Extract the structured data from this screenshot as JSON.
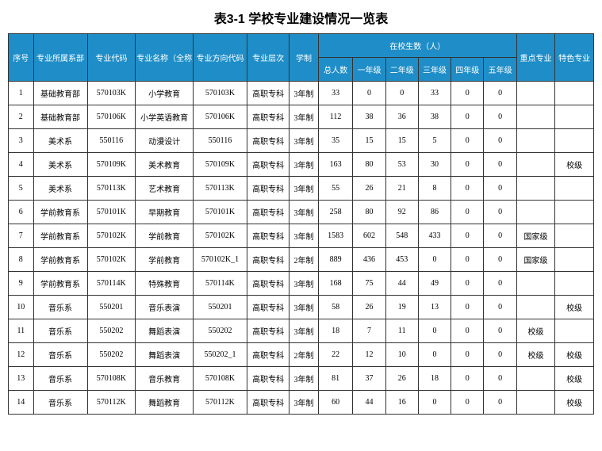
{
  "title": "表3-1 学校专业建设情况一览表",
  "colors": {
    "header_bg": "#1f8ec8",
    "header_fg": "#ffffff",
    "border": "#333333",
    "bg": "#ffffff"
  },
  "headers": {
    "idx": "序号",
    "dept": "专业所属系部",
    "code": "专业代码",
    "name": "专业名称（全称）",
    "dir": "专业方向代码",
    "level": "专业层次",
    "system": "学制",
    "enroll_group": "在校生数（人）",
    "total": "总人数",
    "g1": "一年级",
    "g2": "二年级",
    "g3": "三年级",
    "g4": "四年级",
    "g5": "五年级",
    "key": "重点专业",
    "feature": "特色专业"
  },
  "rows": [
    {
      "idx": "1",
      "dept": "基础教育部",
      "code": "570103K",
      "name": "小学教育",
      "dir": "570103K",
      "level": "高职专科",
      "sys": "3年制",
      "tot": "33",
      "g1": "0",
      "g2": "0",
      "g3": "33",
      "g4": "0",
      "g5": "0",
      "key": "",
      "feat": ""
    },
    {
      "idx": "2",
      "dept": "基础教育部",
      "code": "570106K",
      "name": "小学英语教育",
      "dir": "570106K",
      "level": "高职专科",
      "sys": "3年制",
      "tot": "112",
      "g1": "38",
      "g2": "36",
      "g3": "38",
      "g4": "0",
      "g5": "0",
      "key": "",
      "feat": ""
    },
    {
      "idx": "3",
      "dept": "美术系",
      "code": "550116",
      "name": "动漫设计",
      "dir": "550116",
      "level": "高职专科",
      "sys": "3年制",
      "tot": "35",
      "g1": "15",
      "g2": "15",
      "g3": "5",
      "g4": "0",
      "g5": "0",
      "key": "",
      "feat": ""
    },
    {
      "idx": "4",
      "dept": "美术系",
      "code": "570109K",
      "name": "美术教育",
      "dir": "570109K",
      "level": "高职专科",
      "sys": "3年制",
      "tot": "163",
      "g1": "80",
      "g2": "53",
      "g3": "30",
      "g4": "0",
      "g5": "0",
      "key": "",
      "feat": "校级"
    },
    {
      "idx": "5",
      "dept": "美术系",
      "code": "570113K",
      "name": "艺术教育",
      "dir": "570113K",
      "level": "高职专科",
      "sys": "3年制",
      "tot": "55",
      "g1": "26",
      "g2": "21",
      "g3": "8",
      "g4": "0",
      "g5": "0",
      "key": "",
      "feat": ""
    },
    {
      "idx": "6",
      "dept": "学前教育系",
      "code": "570101K",
      "name": "早期教育",
      "dir": "570101K",
      "level": "高职专科",
      "sys": "3年制",
      "tot": "258",
      "g1": "80",
      "g2": "92",
      "g3": "86",
      "g4": "0",
      "g5": "0",
      "key": "",
      "feat": ""
    },
    {
      "idx": "7",
      "dept": "学前教育系",
      "code": "570102K",
      "name": "学前教育",
      "dir": "570102K",
      "level": "高职专科",
      "sys": "3年制",
      "tot": "1583",
      "g1": "602",
      "g2": "548",
      "g3": "433",
      "g4": "0",
      "g5": "0",
      "key": "国家级",
      "feat": ""
    },
    {
      "idx": "8",
      "dept": "学前教育系",
      "code": "570102K",
      "name": "学前教育",
      "dir": "570102K_1",
      "level": "高职专科",
      "sys": "2年制",
      "tot": "889",
      "g1": "436",
      "g2": "453",
      "g3": "0",
      "g4": "0",
      "g5": "0",
      "key": "国家级",
      "feat": ""
    },
    {
      "idx": "9",
      "dept": "学前教育系",
      "code": "570114K",
      "name": "特殊教育",
      "dir": "570114K",
      "level": "高职专科",
      "sys": "3年制",
      "tot": "168",
      "g1": "75",
      "g2": "44",
      "g3": "49",
      "g4": "0",
      "g5": "0",
      "key": "",
      "feat": ""
    },
    {
      "idx": "10",
      "dept": "音乐系",
      "code": "550201",
      "name": "音乐表演",
      "dir": "550201",
      "level": "高职专科",
      "sys": "3年制",
      "tot": "58",
      "g1": "26",
      "g2": "19",
      "g3": "13",
      "g4": "0",
      "g5": "0",
      "key": "",
      "feat": "校级"
    },
    {
      "idx": "11",
      "dept": "音乐系",
      "code": "550202",
      "name": "舞蹈表演",
      "dir": "550202",
      "level": "高职专科",
      "sys": "3年制",
      "tot": "18",
      "g1": "7",
      "g2": "11",
      "g3": "0",
      "g4": "0",
      "g5": "0",
      "key": "校级",
      "feat": ""
    },
    {
      "idx": "12",
      "dept": "音乐系",
      "code": "550202",
      "name": "舞蹈表演",
      "dir": "550202_1",
      "level": "高职专科",
      "sys": "2年制",
      "tot": "22",
      "g1": "12",
      "g2": "10",
      "g3": "0",
      "g4": "0",
      "g5": "0",
      "key": "校级",
      "feat": "校级"
    },
    {
      "idx": "13",
      "dept": "音乐系",
      "code": "570108K",
      "name": "音乐教育",
      "dir": "570108K",
      "level": "高职专科",
      "sys": "3年制",
      "tot": "81",
      "g1": "37",
      "g2": "26",
      "g3": "18",
      "g4": "0",
      "g5": "0",
      "key": "",
      "feat": "校级"
    },
    {
      "idx": "14",
      "dept": "音乐系",
      "code": "570112K",
      "name": "舞蹈教育",
      "dir": "570112K",
      "level": "高职专科",
      "sys": "3年制",
      "tot": "60",
      "g1": "44",
      "g2": "16",
      "g3": "0",
      "g4": "0",
      "g5": "0",
      "key": "",
      "feat": "校级"
    }
  ]
}
